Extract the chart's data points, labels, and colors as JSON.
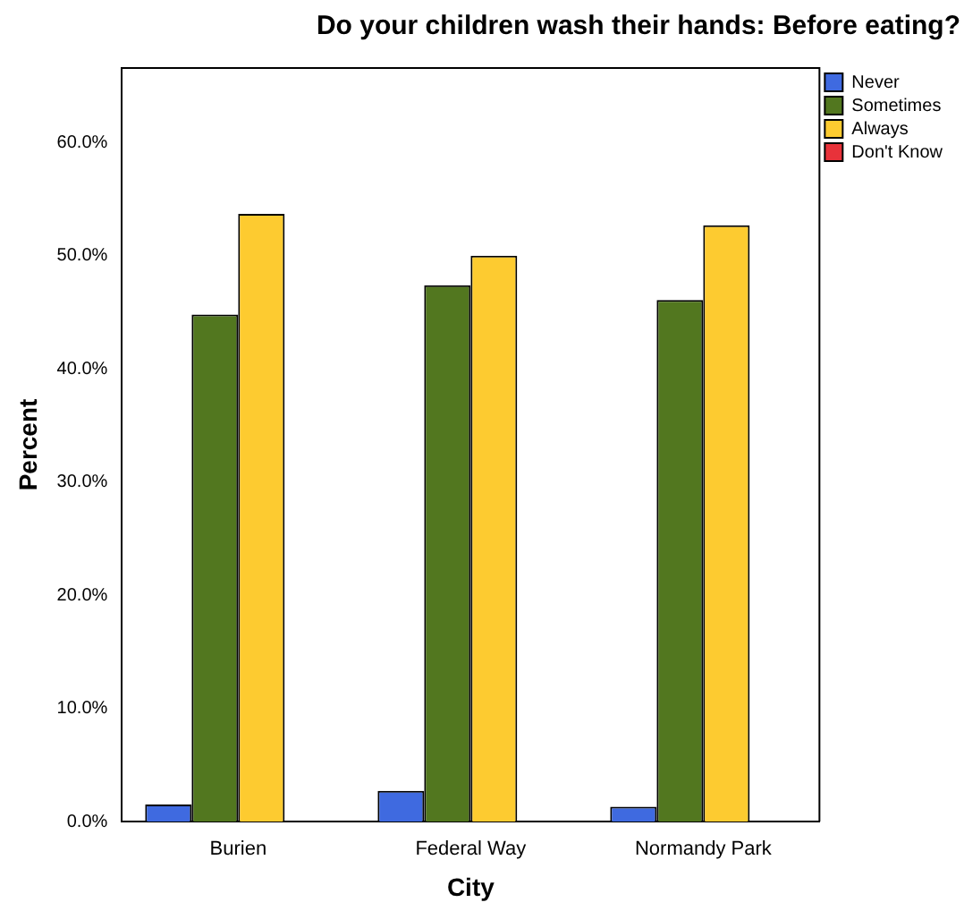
{
  "chart_data": {
    "type": "bar",
    "title": "Do your children wash their hands: Before eating?",
    "xlabel": "City",
    "ylabel": "Percent",
    "categories": [
      "Burien",
      "Federal Way",
      "Normandy Park"
    ],
    "series": [
      {
        "name": "Never",
        "color": "#3f6ae0",
        "values": [
          1.5,
          2.7,
          1.3
        ]
      },
      {
        "name": "Sometimes",
        "color": "#52771f",
        "values": [
          44.8,
          47.4,
          46.1
        ]
      },
      {
        "name": "Always",
        "color": "#fdcb30",
        "values": [
          53.7,
          50.0,
          52.7
        ]
      },
      {
        "name": "Don't Know",
        "color": "#e8323a",
        "values": [
          0,
          0,
          0
        ]
      }
    ],
    "ylim": [
      0,
      66.6
    ],
    "yticks": [
      {
        "value": 0,
        "label": "0.0%"
      },
      {
        "value": 10,
        "label": "10.0%"
      },
      {
        "value": 20,
        "label": "20.0%"
      },
      {
        "value": 30,
        "label": "30.0%"
      },
      {
        "value": 40,
        "label": "40.0%"
      },
      {
        "value": 50,
        "label": "50.0%"
      },
      {
        "value": 60,
        "label": "60.0%"
      }
    ],
    "grid": false,
    "legend": "top right"
  }
}
